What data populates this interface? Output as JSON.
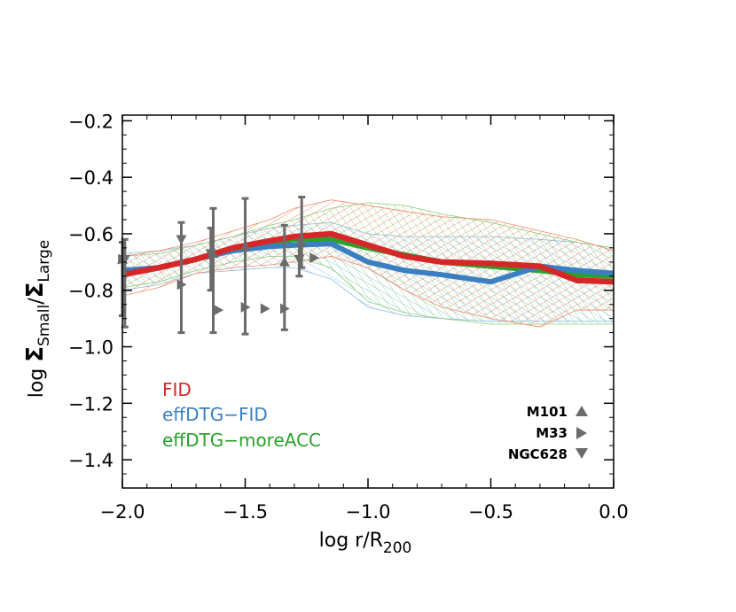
{
  "chart_data": {
    "type": "line",
    "xlabel_prefix": "log r/R",
    "xlabel_sub": "200",
    "ylabel_prefix": "log ",
    "ylabel_sigma": "Σ",
    "ylabel_sub_small": "Small",
    "ylabel_slash": "/",
    "ylabel_sub_large": "Large",
    "xlim": [
      -2.0,
      0.0
    ],
    "ylim": [
      -1.5,
      -0.18
    ],
    "xticks": [
      -2.0,
      -1.5,
      -1.0,
      -0.5,
      0.0
    ],
    "xtick_labels": [
      "−2.0",
      "−1.5",
      "−1.0",
      "−0.5",
      "0.0"
    ],
    "yticks": [
      -0.2,
      -0.4,
      -0.6,
      -0.8,
      -1.0,
      -1.2,
      -1.4
    ],
    "ytick_labels": [
      "−0.2",
      "−0.4",
      "−0.6",
      "−0.8",
      "−1.0",
      "−1.2",
      "−1.4"
    ],
    "series": [
      {
        "name": "FID",
        "color": "#d62728",
        "x": [
          -2.0,
          -1.85,
          -1.7,
          -1.55,
          -1.4,
          -1.3,
          -1.15,
          -1.0,
          -0.85,
          -0.7,
          -0.5,
          -0.3,
          -0.15,
          0.0
        ],
        "y": [
          -0.745,
          -0.72,
          -0.69,
          -0.65,
          -0.625,
          -0.61,
          -0.6,
          -0.64,
          -0.68,
          -0.7,
          -0.705,
          -0.715,
          -0.765,
          -0.77
        ],
        "band_low": [
          -0.82,
          -0.79,
          -0.74,
          -0.72,
          -0.71,
          -0.7,
          -0.68,
          -0.72,
          -0.8,
          -0.86,
          -0.9,
          -0.93,
          -0.87,
          -0.87
        ],
        "band_high": [
          -0.68,
          -0.66,
          -0.63,
          -0.59,
          -0.55,
          -0.51,
          -0.48,
          -0.5,
          -0.52,
          -0.54,
          -0.55,
          -0.59,
          -0.62,
          -0.66
        ]
      },
      {
        "name": "effDTG−FID",
        "color": "#3a7fc1",
        "x": [
          -2.0,
          -1.85,
          -1.7,
          -1.55,
          -1.4,
          -1.3,
          -1.15,
          -1.0,
          -0.85,
          -0.7,
          -0.5,
          -0.3,
          -0.15,
          0.0
        ],
        "y": [
          -0.73,
          -0.72,
          -0.69,
          -0.66,
          -0.645,
          -0.64,
          -0.635,
          -0.7,
          -0.73,
          -0.745,
          -0.77,
          -0.715,
          -0.73,
          -0.74
        ],
        "band_low": [
          -0.8,
          -0.78,
          -0.74,
          -0.73,
          -0.72,
          -0.72,
          -0.76,
          -0.86,
          -0.89,
          -0.9,
          -0.91,
          -0.91,
          -0.91,
          -0.91
        ],
        "band_high": [
          -0.67,
          -0.66,
          -0.64,
          -0.61,
          -0.58,
          -0.57,
          -0.56,
          -0.6,
          -0.61,
          -0.61,
          -0.61,
          -0.62,
          -0.63,
          -0.65
        ]
      },
      {
        "name": "effDTG−moreACC",
        "color": "#2ca02c",
        "x": [
          -2.0,
          -1.85,
          -1.7,
          -1.55,
          -1.4,
          -1.3,
          -1.15,
          -1.0,
          -0.85,
          -0.7,
          -0.5,
          -0.3,
          -0.15,
          0.0
        ],
        "y": [
          -0.74,
          -0.72,
          -0.69,
          -0.655,
          -0.63,
          -0.62,
          -0.62,
          -0.65,
          -0.675,
          -0.7,
          -0.715,
          -0.73,
          -0.745,
          -0.75
        ],
        "band_low": [
          -0.79,
          -0.77,
          -0.73,
          -0.7,
          -0.68,
          -0.68,
          -0.72,
          -0.84,
          -0.88,
          -0.9,
          -0.92,
          -0.92,
          -0.92,
          -0.92
        ],
        "band_high": [
          -0.68,
          -0.67,
          -0.64,
          -0.61,
          -0.57,
          -0.55,
          -0.51,
          -0.49,
          -0.5,
          -0.53,
          -0.56,
          -0.6,
          -0.63,
          -0.65
        ]
      }
    ],
    "observations": [
      {
        "name": "M101",
        "symbol": "triangle-up",
        "color": "#6b6b6b",
        "points": [
          {
            "x": -2.0,
            "y": -0.69,
            "yerr_low": 0.2,
            "yerr_high": 0.06
          },
          {
            "x": -1.63,
            "y": -0.67,
            "yerr_low": 0.28,
            "yerr_high": 0.16
          },
          {
            "x": -1.5,
            "y": -0.645,
            "yerr_low": 0.31,
            "yerr_high": 0.17
          },
          {
            "x": -1.34,
            "y": -0.7,
            "yerr_low": 0.24,
            "yerr_high": 0.13
          },
          {
            "x": -1.27,
            "y": -0.63,
            "yerr_low": 0.09,
            "yerr_high": 0.16
          }
        ]
      },
      {
        "name": "M33",
        "symbol": "triangle-right",
        "color": "#6b6b6b",
        "points": [
          {
            "x": -2.0,
            "y": -0.69
          },
          {
            "x": -1.76,
            "y": -0.78
          },
          {
            "x": -1.61,
            "y": -0.87
          },
          {
            "x": -1.5,
            "y": -0.86
          },
          {
            "x": -1.42,
            "y": -0.865
          },
          {
            "x": -1.34,
            "y": -0.865
          },
          {
            "x": -1.22,
            "y": -0.685
          }
        ]
      },
      {
        "name": "NGC628",
        "symbol": "triangle-down",
        "color": "#6b6b6b",
        "points": [
          {
            "x": -1.99,
            "y": -0.69,
            "yerr_low": 0.24,
            "yerr_high": 0.07
          },
          {
            "x": -1.76,
            "y": -0.62,
            "yerr_low": 0.33,
            "yerr_high": 0.06
          },
          {
            "x": -1.64,
            "y": -0.67,
            "yerr_low": 0.13,
            "yerr_high": 0.09
          },
          {
            "x": -1.28,
            "y": -0.69,
            "yerr_low": 0.06,
            "yerr_high": 0.07
          }
        ]
      }
    ],
    "legend": [
      "FID",
      "effDTG−FID",
      "effDTG−moreACC"
    ],
    "legend_position": "bottom-left",
    "obs_legend_position": "bottom-right"
  }
}
